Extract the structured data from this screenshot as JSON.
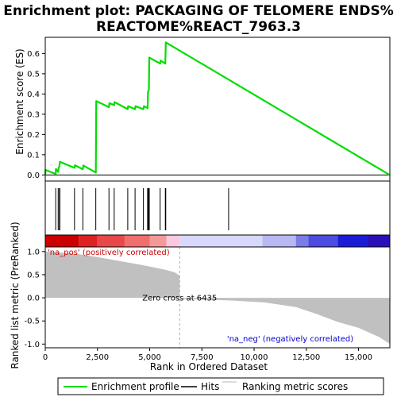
{
  "chart_data": {
    "type": "line",
    "title_line1": "Enrichment plot: PACKAGING OF TELOMERE ENDS%",
    "title_line2": "REACTOME%REACT_7963.3",
    "x_range": [
      0,
      16500
    ],
    "x_ticks": [
      0,
      2500,
      5000,
      7500,
      10000,
      12500,
      15000
    ],
    "x_tick_labels": [
      "0",
      "2,500",
      "5,000",
      "7,500",
      "10,000",
      "12,500",
      "15,000"
    ],
    "xlabel": "Rank in Ordered Dataset",
    "es_panel": {
      "ylabel": "Enrichment score (ES)",
      "ylim": [
        -0.03,
        0.68
      ],
      "y_ticks": [
        0.0,
        0.1,
        0.2,
        0.3,
        0.4,
        0.5,
        0.6
      ],
      "y_tick_labels": [
        "0.0",
        "0.1",
        "0.2",
        "0.3",
        "0.4",
        "0.5",
        "0.6"
      ],
      "profile": [
        [
          0,
          0.0
        ],
        [
          10,
          0.025
        ],
        [
          500,
          0.005
        ],
        [
          510,
          0.03
        ],
        [
          620,
          0.015
        ],
        [
          640,
          0.035
        ],
        [
          680,
          0.045
        ],
        [
          700,
          0.065
        ],
        [
          1400,
          0.035
        ],
        [
          1420,
          0.048
        ],
        [
          1800,
          0.028
        ],
        [
          1820,
          0.047
        ],
        [
          2420,
          0.012
        ],
        [
          2440,
          0.365
        ],
        [
          3050,
          0.335
        ],
        [
          3070,
          0.355
        ],
        [
          3300,
          0.345
        ],
        [
          3320,
          0.36
        ],
        [
          3950,
          0.325
        ],
        [
          3970,
          0.34
        ],
        [
          4300,
          0.325
        ],
        [
          4320,
          0.34
        ],
        [
          4700,
          0.325
        ],
        [
          4720,
          0.34
        ],
        [
          4900,
          0.33
        ],
        [
          4920,
          0.41
        ],
        [
          4960,
          0.42
        ],
        [
          4980,
          0.58
        ],
        [
          5500,
          0.55
        ],
        [
          5520,
          0.565
        ],
        [
          5750,
          0.55
        ],
        [
          5770,
          0.655
        ],
        [
          16500,
          0.0
        ]
      ]
    },
    "hits": [
      500,
      620,
      680,
      700,
      1400,
      1800,
      2420,
      3050,
      3300,
      3950,
      4300,
      4700,
      4900,
      4920,
      4960,
      4980,
      5500,
      5750,
      5770,
      8780
    ],
    "colorbar": [
      [
        0,
        1600,
        "#cc0000"
      ],
      [
        1600,
        2500,
        "#dd2222"
      ],
      [
        2500,
        3800,
        "#e84848"
      ],
      [
        3800,
        5000,
        "#f06e6e"
      ],
      [
        5000,
        5800,
        "#f59898"
      ],
      [
        5800,
        6450,
        "#fbc8e0"
      ],
      [
        6450,
        10400,
        "#d8d8fa"
      ],
      [
        10400,
        12000,
        "#b8b8f2"
      ],
      [
        12000,
        12600,
        "#7c7ce6"
      ],
      [
        12600,
        14000,
        "#4c4ce0"
      ],
      [
        14000,
        15400,
        "#1c1cd6"
      ],
      [
        15400,
        16500,
        "#2a10b8"
      ]
    ],
    "metric_panel": {
      "ylabel": "Ranked list metric (PreRanked)",
      "ylim": [
        -1.08,
        1.1
      ],
      "y_ticks": [
        1.0,
        0.5,
        0.0,
        -0.5,
        -1.0
      ],
      "y_tick_labels": [
        "1.0",
        "0.5",
        "0.0",
        "-0.5",
        "-1.0"
      ],
      "metric": [
        [
          0,
          1.0
        ],
        [
          1500,
          0.95
        ],
        [
          2500,
          0.88
        ],
        [
          3500,
          0.8
        ],
        [
          4500,
          0.72
        ],
        [
          5300,
          0.65
        ],
        [
          5800,
          0.6
        ],
        [
          6200,
          0.55
        ],
        [
          6435,
          0.48
        ],
        [
          6436,
          0.0
        ],
        [
          6500,
          -0.02
        ],
        [
          9000,
          -0.06
        ],
        [
          10500,
          -0.1
        ],
        [
          12000,
          -0.2
        ],
        [
          13000,
          -0.35
        ],
        [
          14000,
          -0.52
        ],
        [
          15000,
          -0.65
        ],
        [
          16000,
          -0.85
        ],
        [
          16500,
          -1.0
        ]
      ],
      "pos_label": "'na_pos' (positively correlated)",
      "neg_label": "'na_neg' (negatively correlated)",
      "zero_cross_label": "Zero cross at 6435",
      "zero_cross": 6435
    },
    "legend": {
      "placement": "bottom",
      "items": [
        {
          "label": "Enrichment profile",
          "color": "#00dd00"
        },
        {
          "label": "Hits",
          "color": "#000000"
        },
        {
          "label": "Ranking metric scores",
          "color": "#bbbbbb"
        }
      ]
    },
    "colors": {
      "profile": "#00dd00",
      "metric_fill": "#c0c0c0",
      "zero_cross_line": "#aaaaaa"
    }
  }
}
